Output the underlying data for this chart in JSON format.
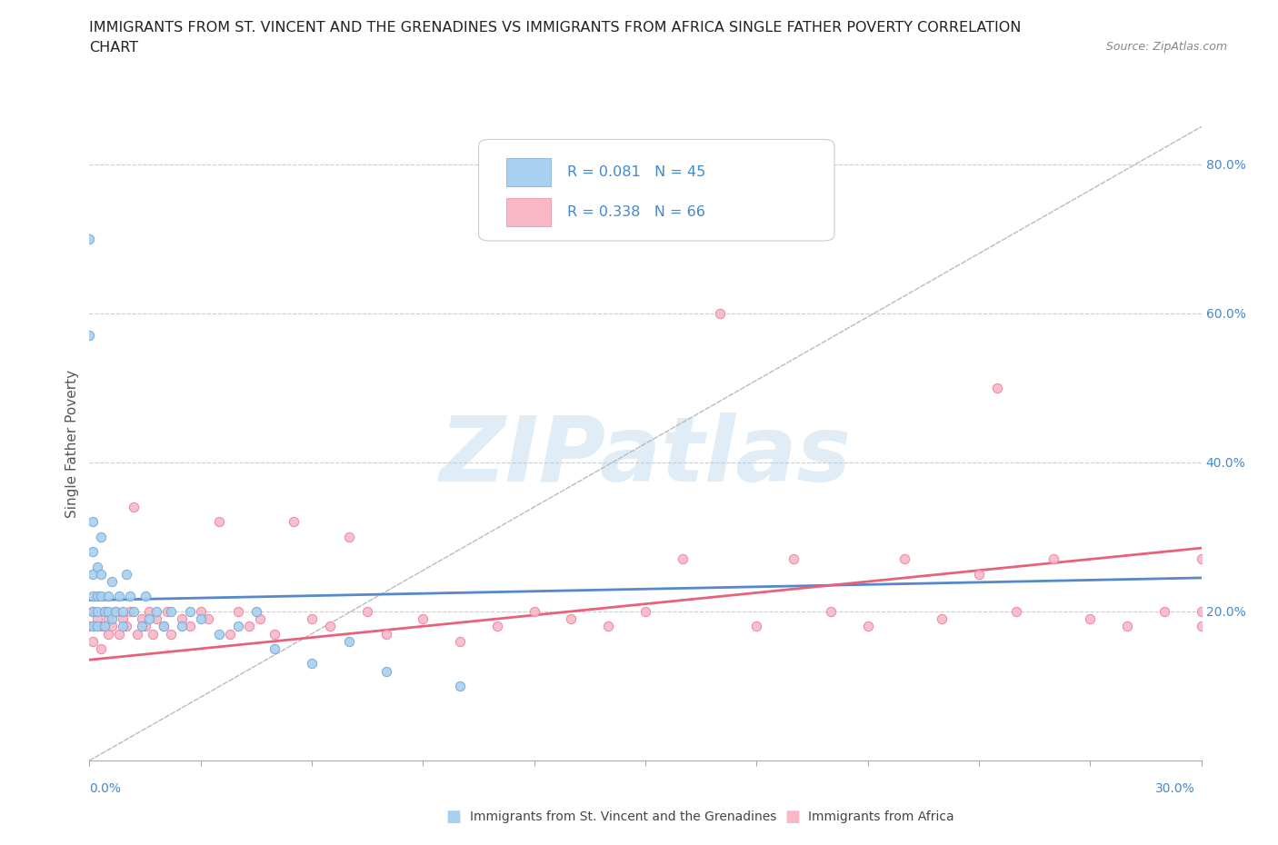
{
  "title_line1": "IMMIGRANTS FROM ST. VINCENT AND THE GRENADINES VS IMMIGRANTS FROM AFRICA SINGLE FATHER POVERTY CORRELATION",
  "title_line2": "CHART",
  "source": "Source: ZipAtlas.com",
  "ylabel": "Single Father Poverty",
  "color_sv": "#a8d0f0",
  "color_sv_edge": "#7aaad0",
  "color_sv_line": "#5588cc",
  "color_africa": "#f8b8c8",
  "color_africa_edge": "#e888a0",
  "color_africa_line": "#e8607a",
  "color_diag": "#bbbbbb",
  "color_grid": "#cccccc",
  "color_ytick": "#4488cc",
  "xlim": [
    0.0,
    0.3
  ],
  "ylim": [
    0.0,
    0.85
  ],
  "ytick_vals": [
    0.2,
    0.4,
    0.6,
    0.8
  ],
  "ytick_labels": [
    "20.0%",
    "40.0%",
    "60.0%",
    "80.0%"
  ],
  "watermark_text": "ZIPatlas",
  "legend_r1": "R = 0.081",
  "legend_n1": "N = 45",
  "legend_r2": "R = 0.338",
  "legend_n2": "N = 66",
  "sv_x": [
    0.0,
    0.0,
    0.001,
    0.001,
    0.001,
    0.001,
    0.001,
    0.001,
    0.002,
    0.002,
    0.002,
    0.002,
    0.003,
    0.003,
    0.003,
    0.004,
    0.004,
    0.005,
    0.005,
    0.006,
    0.006,
    0.007,
    0.008,
    0.009,
    0.009,
    0.01,
    0.011,
    0.012,
    0.014,
    0.015,
    0.016,
    0.018,
    0.02,
    0.022,
    0.025,
    0.027,
    0.03,
    0.035,
    0.04,
    0.045,
    0.05,
    0.06,
    0.07,
    0.08,
    0.1
  ],
  "sv_y": [
    0.7,
    0.57,
    0.32,
    0.28,
    0.25,
    0.22,
    0.2,
    0.18,
    0.26,
    0.22,
    0.2,
    0.18,
    0.3,
    0.25,
    0.22,
    0.2,
    0.18,
    0.22,
    0.2,
    0.24,
    0.19,
    0.2,
    0.22,
    0.2,
    0.18,
    0.25,
    0.22,
    0.2,
    0.18,
    0.22,
    0.19,
    0.2,
    0.18,
    0.2,
    0.18,
    0.2,
    0.19,
    0.17,
    0.18,
    0.2,
    0.15,
    0.13,
    0.16,
    0.12,
    0.1
  ],
  "africa_x": [
    0.0,
    0.001,
    0.001,
    0.002,
    0.003,
    0.003,
    0.004,
    0.005,
    0.005,
    0.006,
    0.007,
    0.008,
    0.009,
    0.01,
    0.011,
    0.012,
    0.013,
    0.014,
    0.015,
    0.016,
    0.017,
    0.018,
    0.02,
    0.021,
    0.022,
    0.025,
    0.027,
    0.03,
    0.032,
    0.035,
    0.038,
    0.04,
    0.043,
    0.046,
    0.05,
    0.055,
    0.06,
    0.065,
    0.07,
    0.075,
    0.08,
    0.09,
    0.1,
    0.11,
    0.12,
    0.13,
    0.14,
    0.15,
    0.16,
    0.17,
    0.18,
    0.19,
    0.2,
    0.21,
    0.22,
    0.23,
    0.24,
    0.245,
    0.25,
    0.26,
    0.27,
    0.28,
    0.29,
    0.3,
    0.3,
    0.3
  ],
  "africa_y": [
    0.18,
    0.2,
    0.16,
    0.19,
    0.18,
    0.15,
    0.2,
    0.17,
    0.19,
    0.18,
    0.2,
    0.17,
    0.19,
    0.18,
    0.2,
    0.34,
    0.17,
    0.19,
    0.18,
    0.2,
    0.17,
    0.19,
    0.18,
    0.2,
    0.17,
    0.19,
    0.18,
    0.2,
    0.19,
    0.32,
    0.17,
    0.2,
    0.18,
    0.19,
    0.17,
    0.32,
    0.19,
    0.18,
    0.3,
    0.2,
    0.17,
    0.19,
    0.16,
    0.18,
    0.2,
    0.19,
    0.18,
    0.2,
    0.27,
    0.6,
    0.18,
    0.27,
    0.2,
    0.18,
    0.27,
    0.19,
    0.25,
    0.5,
    0.2,
    0.27,
    0.19,
    0.18,
    0.2,
    0.27,
    0.18,
    0.2
  ]
}
